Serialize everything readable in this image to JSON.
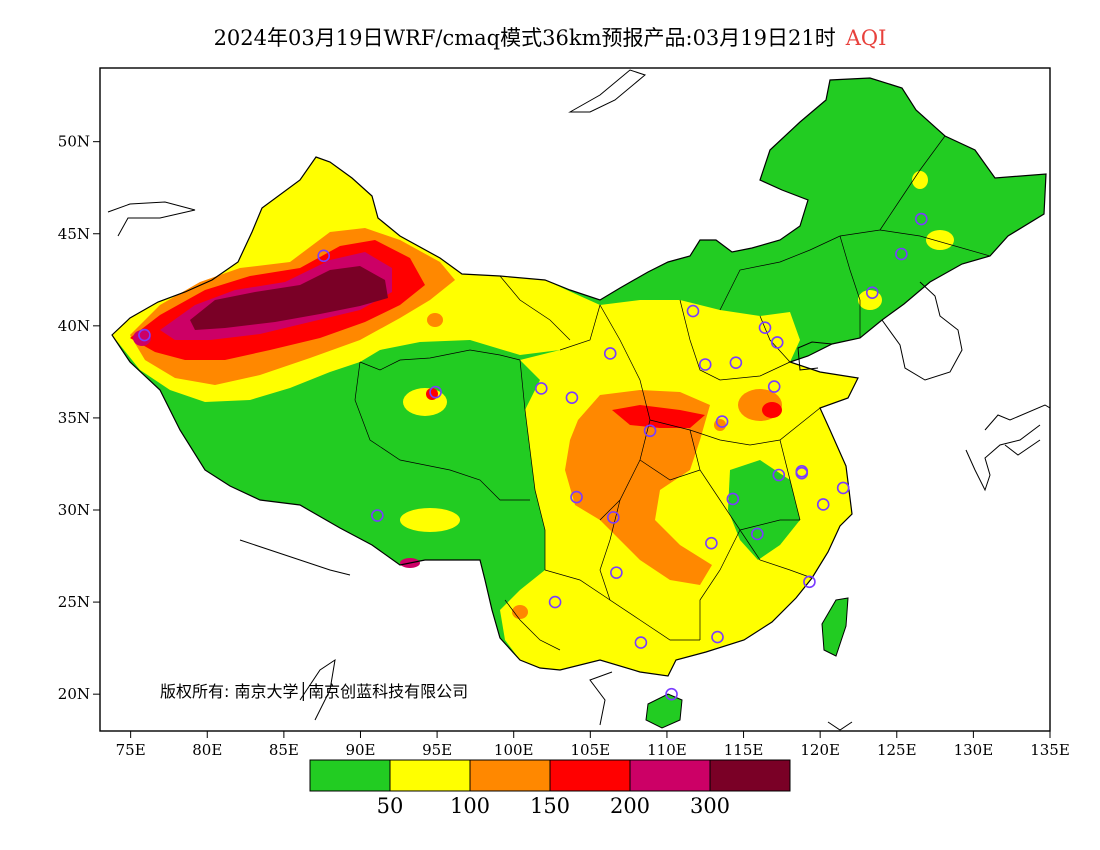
{
  "title": {
    "main": "2024年03月19日WRF/cmaq模式36km预报产品:03月19日21时",
    "variable": "AQI",
    "variable_color": "#e8413c"
  },
  "axes": {
    "x_labels": [
      "75E",
      "80E",
      "85E",
      "90E",
      "95E",
      "100E",
      "105E",
      "110E",
      "115E",
      "120E",
      "125E",
      "130E",
      "135E"
    ],
    "y_labels": [
      "20N",
      "25N",
      "30N",
      "35N",
      "40N",
      "45N",
      "50N"
    ],
    "x_range": [
      73,
      135
    ],
    "y_range": [
      18,
      54
    ]
  },
  "colorbar": {
    "colors": [
      "#22cc22",
      "#ffff00",
      "#ff8800",
      "#ff0000",
      "#cc0066",
      "#7a0026"
    ],
    "thresholds": [
      "50",
      "100",
      "150",
      "200",
      "300"
    ]
  },
  "copyright": "版权所有: 南京大学│南京创蓝科技有限公司",
  "city_marker_color": "#7a3cff"
}
